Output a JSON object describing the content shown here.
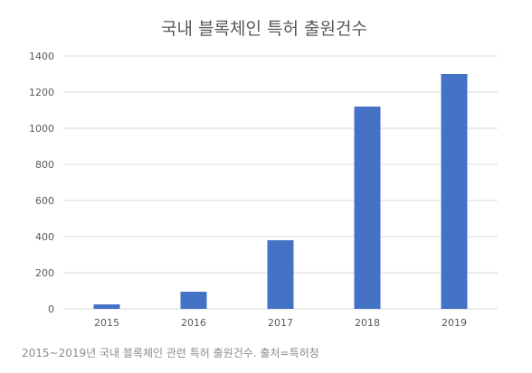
{
  "chart_data": {
    "type": "bar",
    "title": "국내 블록체인 특허 출원건수",
    "categories": [
      "2015",
      "2016",
      "2017",
      "2018",
      "2019"
    ],
    "values": [
      25,
      95,
      380,
      1120,
      1300
    ],
    "ylim": [
      0,
      1400
    ],
    "yticks": [
      0,
      200,
      400,
      600,
      800,
      1000,
      1200,
      1400
    ],
    "xlabel": "",
    "ylabel": "",
    "grid": true,
    "legend": "none",
    "bar_color": "#4472c4",
    "grid_color": "#d9d9d9",
    "text_color": "#595959"
  },
  "caption": "2015~2019년 국내 블록체인 관련 특허 출원건수. 출처=특허청"
}
